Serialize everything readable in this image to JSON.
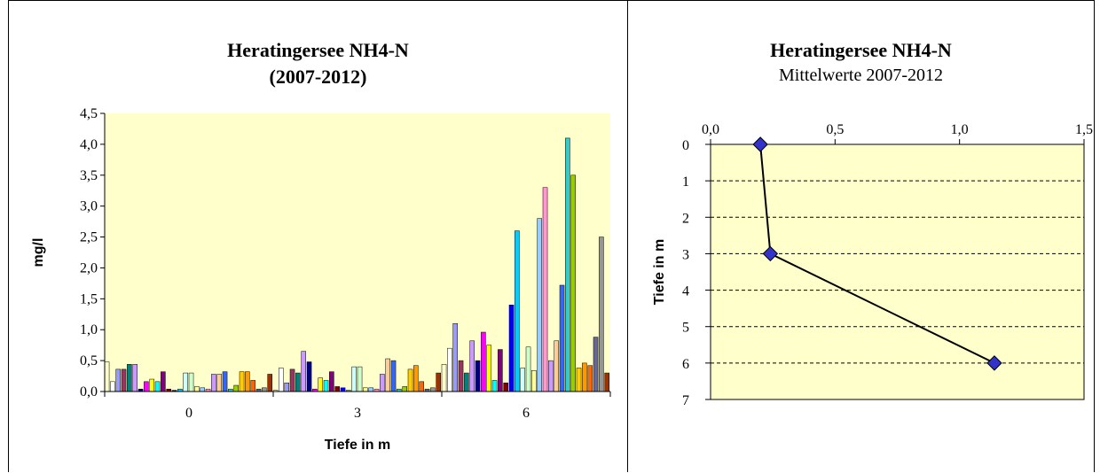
{
  "left_chart": {
    "title": "Heratingersee NH4-N",
    "subtitle": "(2007-2012)"
  },
  "right_chart": {
    "title": "Heratingersee NH4-N",
    "subtitle": "Mittelwerte 2007-2012"
  },
  "colors": {
    "plot_background": "#FFFFCC",
    "series_palette": [
      "#FFFFCC",
      "#FFFFFF",
      "#9999FF",
      "#993366",
      "#008080",
      "#CC99FF",
      "#000080",
      "#FF00FF",
      "#FFFF00",
      "#00FFFF",
      "#800080",
      "#800000",
      "#0000FF",
      "#00CCFF",
      "#CCFFFF",
      "#CCFFCC",
      "#FFFF99",
      "#99CCFF",
      "#FF99CC",
      "#CC99FF",
      "#FFCC99",
      "#3366FF",
      "#33CCCC",
      "#99CC00",
      "#FFCC00",
      "#FF9900",
      "#FF6600",
      "#666699",
      "#969696",
      "#993300"
    ],
    "marker_fill": "#3333CC"
  },
  "chart_data": [
    {
      "type": "bar",
      "title": "Heratingersee NH4-N",
      "subtitle": "(2007-2012)",
      "xlabel": "Tiefe in m",
      "ylabel": "mg/l",
      "categories": [
        "0",
        "3",
        "6"
      ],
      "ylim": [
        0,
        4.5
      ],
      "yticks": [
        "0,0",
        "0,5",
        "1,0",
        "1,5",
        "2,0",
        "2,5",
        "3,0",
        "3,5",
        "4,0",
        "4,5"
      ],
      "grid": false,
      "legend": "none",
      "groups": [
        [
          0.48,
          0.16,
          0.36,
          0.36,
          0.44,
          0.44,
          0.04,
          0.16,
          0.2,
          0.16,
          0.32,
          0.04,
          0.02,
          0.04,
          0.3,
          0.3,
          0.08,
          0.06,
          0.04,
          0.28,
          0.28,
          0.32,
          0.04,
          0.1,
          0.32,
          0.32,
          0.18,
          0.04,
          0.06,
          0.28
        ],
        [
          0.02,
          0.38,
          0.14,
          0.36,
          0.3,
          0.65,
          0.48,
          0.04,
          0.22,
          0.18,
          0.32,
          0.08,
          0.06,
          0.02,
          0.4,
          0.4,
          0.06,
          0.06,
          0.04,
          0.28,
          0.53,
          0.5,
          0.04,
          0.08,
          0.36,
          0.42,
          0.16,
          0.04,
          0.06,
          0.3
        ],
        [
          0.44,
          0.7,
          1.1,
          0.5,
          0.3,
          0.82,
          0.5,
          0.96,
          0.75,
          0.18,
          0.68,
          0.14,
          1.4,
          2.6,
          0.38,
          0.72,
          0.34,
          2.8,
          3.3,
          0.5,
          0.82,
          1.72,
          4.1,
          3.5,
          0.38,
          0.46,
          0.42,
          0.88,
          2.5,
          0.3
        ]
      ]
    },
    {
      "type": "line",
      "title": "Heratingersee NH4-N",
      "subtitle": "Mittelwerte 2007-2012",
      "xlabel": "",
      "ylabel": "Tiefe in m",
      "xlim": [
        0,
        1.5
      ],
      "ylim": [
        0,
        7
      ],
      "xticks": [
        "0,0",
        "0,5",
        "1,0",
        "1,5"
      ],
      "yticks": [
        "0",
        "1",
        "2",
        "3",
        "4",
        "5",
        "6",
        "7"
      ],
      "x_axis_position": "top",
      "y_inverted": true,
      "grid": "horizontal dashed",
      "legend": "none",
      "points": [
        {
          "x": 0.2,
          "y": 0
        },
        {
          "x": 0.24,
          "y": 3
        },
        {
          "x": 1.14,
          "y": 6
        }
      ]
    }
  ]
}
